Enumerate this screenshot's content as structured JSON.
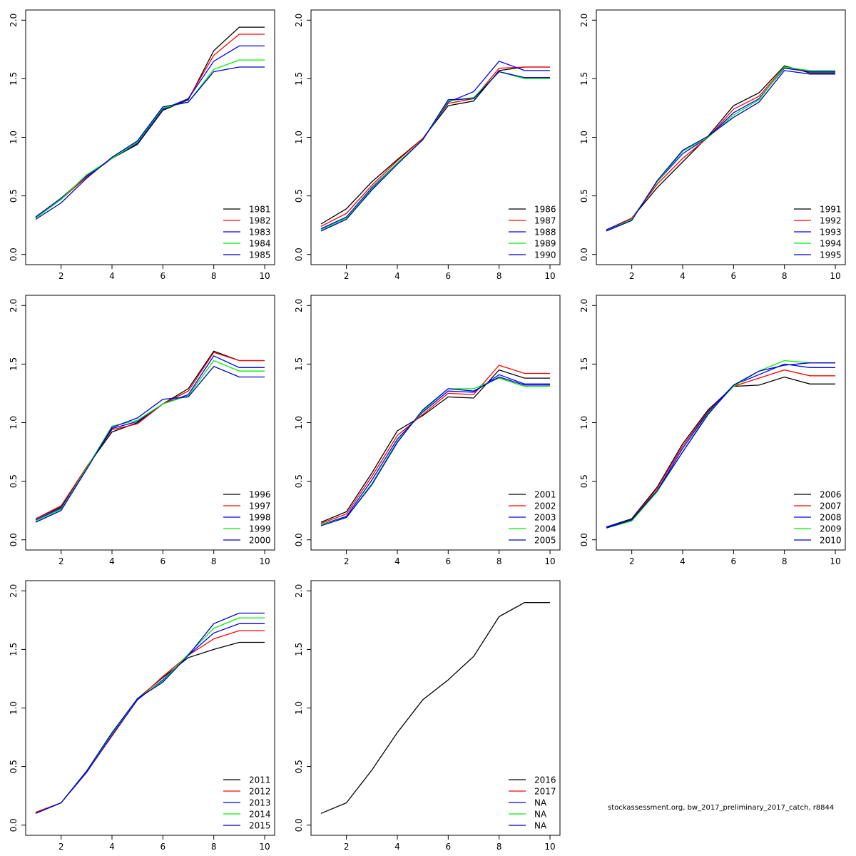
{
  "footer": "stockassessment.org, bw_2017_preliminary_2017_catch, r8844",
  "chart_data": [
    {
      "type": "line",
      "x": [
        1,
        2,
        3,
        4,
        5,
        6,
        7,
        8,
        9,
        10
      ],
      "ylim": [
        0,
        2
      ],
      "xlim": [
        1,
        10
      ],
      "xticks": [
        "2",
        "4",
        "6",
        "8",
        "10"
      ],
      "yticks": [
        "0.0",
        "0.5",
        "1.0",
        "1.5",
        "2.0"
      ],
      "series": [
        {
          "name": "1981",
          "color": "#000000",
          "values": [
            0.32,
            0.48,
            0.67,
            0.82,
            0.94,
            1.23,
            1.32,
            1.74,
            1.94,
            1.94
          ]
        },
        {
          "name": "1982",
          "color": "#ff0000",
          "values": [
            0.31,
            0.47,
            0.66,
            0.82,
            0.95,
            1.24,
            1.33,
            1.7,
            1.88,
            1.88
          ]
        },
        {
          "name": "1983",
          "color": "#0000ff",
          "values": [
            0.32,
            0.48,
            0.67,
            0.82,
            0.95,
            1.24,
            1.33,
            1.65,
            1.78,
            1.78
          ]
        },
        {
          "name": "1984",
          "color": "#00ee00",
          "values": [
            0.31,
            0.47,
            0.68,
            0.82,
            0.96,
            1.25,
            1.3,
            1.58,
            1.66,
            1.66
          ]
        },
        {
          "name": "1985",
          "color": "#0000cc",
          "values": [
            0.3,
            0.44,
            0.65,
            0.83,
            0.97,
            1.26,
            1.3,
            1.56,
            1.6,
            1.6
          ]
        }
      ]
    },
    {
      "type": "line",
      "x": [
        1,
        2,
        3,
        4,
        5,
        6,
        7,
        8,
        9,
        10
      ],
      "ylim": [
        0,
        2
      ],
      "xlim": [
        1,
        10
      ],
      "xticks": [
        "2",
        "4",
        "6",
        "8",
        "10"
      ],
      "yticks": [
        "0.0",
        "0.5",
        "1.0",
        "1.5",
        "2.0"
      ],
      "series": [
        {
          "name": "1986",
          "color": "#000000",
          "values": [
            0.26,
            0.39,
            0.62,
            0.81,
            0.99,
            1.27,
            1.31,
            1.57,
            1.6,
            1.6
          ]
        },
        {
          "name": "1987",
          "color": "#ff0000",
          "values": [
            0.24,
            0.35,
            0.59,
            0.8,
            0.99,
            1.29,
            1.33,
            1.59,
            1.6,
            1.6
          ]
        },
        {
          "name": "1988",
          "color": "#0000ff",
          "values": [
            0.22,
            0.32,
            0.57,
            0.78,
            0.98,
            1.3,
            1.39,
            1.65,
            1.57,
            1.57
          ]
        },
        {
          "name": "1989",
          "color": "#00ee00",
          "values": [
            0.21,
            0.31,
            0.56,
            0.78,
            0.98,
            1.31,
            1.34,
            1.56,
            1.5,
            1.5
          ]
        },
        {
          "name": "1990",
          "color": "#0000cc",
          "values": [
            0.2,
            0.3,
            0.55,
            0.77,
            0.98,
            1.32,
            1.33,
            1.56,
            1.51,
            1.51
          ]
        }
      ]
    },
    {
      "type": "line",
      "x": [
        1,
        2,
        3,
        4,
        5,
        6,
        7,
        8,
        9,
        10
      ],
      "ylim": [
        0,
        2
      ],
      "xlim": [
        1,
        10
      ],
      "xticks": [
        "2",
        "4",
        "6",
        "8",
        "10"
      ],
      "yticks": [
        "0.0",
        "0.5",
        "1.0",
        "1.5",
        "2.0"
      ],
      "series": [
        {
          "name": "1991",
          "color": "#000000",
          "values": [
            0.21,
            0.31,
            0.57,
            0.79,
            1.01,
            1.27,
            1.38,
            1.61,
            1.55,
            1.55
          ]
        },
        {
          "name": "1992",
          "color": "#ff0000",
          "values": [
            0.21,
            0.31,
            0.6,
            0.82,
            1.0,
            1.24,
            1.35,
            1.6,
            1.56,
            1.56
          ]
        },
        {
          "name": "1993",
          "color": "#0000ff",
          "values": [
            0.21,
            0.3,
            0.62,
            0.86,
            1.0,
            1.21,
            1.33,
            1.59,
            1.56,
            1.56
          ]
        },
        {
          "name": "1994",
          "color": "#00ee00",
          "values": [
            0.2,
            0.3,
            0.62,
            0.88,
            1.0,
            1.19,
            1.32,
            1.6,
            1.57,
            1.57
          ]
        },
        {
          "name": "1995",
          "color": "#0000cc",
          "values": [
            0.2,
            0.29,
            0.63,
            0.89,
            1.01,
            1.17,
            1.3,
            1.57,
            1.54,
            1.54
          ]
        }
      ]
    },
    {
      "type": "line",
      "x": [
        1,
        2,
        3,
        4,
        5,
        6,
        7,
        8,
        9,
        10
      ],
      "ylim": [
        0,
        2
      ],
      "xlim": [
        1,
        10
      ],
      "xticks": [
        "2",
        "4",
        "6",
        "8",
        "10"
      ],
      "yticks": [
        "0.0",
        "0.5",
        "1.0",
        "1.5",
        "2.0"
      ],
      "series": [
        {
          "name": "1996",
          "color": "#000000",
          "values": [
            0.18,
            0.28,
            0.62,
            0.92,
            1.0,
            1.16,
            1.29,
            1.61,
            1.53,
            1.53
          ]
        },
        {
          "name": "1997",
          "color": "#ff0000",
          "values": [
            0.18,
            0.29,
            0.62,
            0.94,
            0.99,
            1.16,
            1.27,
            1.6,
            1.53,
            1.53
          ]
        },
        {
          "name": "1998",
          "color": "#0000ff",
          "values": [
            0.17,
            0.27,
            0.61,
            0.95,
            1.01,
            1.16,
            1.24,
            1.57,
            1.47,
            1.47
          ]
        },
        {
          "name": "1999",
          "color": "#00ee00",
          "values": [
            0.16,
            0.26,
            0.61,
            0.97,
            1.02,
            1.16,
            1.23,
            1.53,
            1.44,
            1.44
          ]
        },
        {
          "name": "2000",
          "color": "#0000cc",
          "values": [
            0.15,
            0.25,
            0.6,
            0.96,
            1.04,
            1.2,
            1.22,
            1.48,
            1.39,
            1.39
          ]
        }
      ]
    },
    {
      "type": "line",
      "x": [
        1,
        2,
        3,
        4,
        5,
        6,
        7,
        8,
        9,
        10
      ],
      "ylim": [
        0,
        2
      ],
      "xlim": [
        1,
        10
      ],
      "xticks": [
        "2",
        "4",
        "6",
        "8",
        "10"
      ],
      "yticks": [
        "0.0",
        "0.5",
        "1.0",
        "1.5",
        "2.0"
      ],
      "series": [
        {
          "name": "2001",
          "color": "#000000",
          "values": [
            0.15,
            0.24,
            0.57,
            0.93,
            1.06,
            1.22,
            1.21,
            1.45,
            1.38,
            1.38
          ]
        },
        {
          "name": "2002",
          "color": "#ff0000",
          "values": [
            0.14,
            0.22,
            0.54,
            0.89,
            1.07,
            1.25,
            1.24,
            1.49,
            1.42,
            1.42
          ]
        },
        {
          "name": "2003",
          "color": "#0000ff",
          "values": [
            0.13,
            0.2,
            0.51,
            0.86,
            1.09,
            1.27,
            1.26,
            1.41,
            1.33,
            1.33
          ]
        },
        {
          "name": "2004",
          "color": "#00ee00",
          "values": [
            0.13,
            0.19,
            0.48,
            0.84,
            1.1,
            1.29,
            1.29,
            1.38,
            1.31,
            1.31
          ]
        },
        {
          "name": "2005",
          "color": "#0000cc",
          "values": [
            0.12,
            0.19,
            0.47,
            0.83,
            1.11,
            1.29,
            1.27,
            1.39,
            1.32,
            1.32
          ]
        }
      ]
    },
    {
      "type": "line",
      "x": [
        1,
        2,
        3,
        4,
        5,
        6,
        7,
        8,
        9,
        10
      ],
      "ylim": [
        0,
        2
      ],
      "xlim": [
        1,
        10
      ],
      "xticks": [
        "2",
        "4",
        "6",
        "8",
        "10"
      ],
      "yticks": [
        "0.0",
        "0.5",
        "1.0",
        "1.5",
        "2.0"
      ],
      "series": [
        {
          "name": "2006",
          "color": "#000000",
          "values": [
            0.11,
            0.18,
            0.45,
            0.82,
            1.11,
            1.31,
            1.32,
            1.39,
            1.33,
            1.33
          ]
        },
        {
          "name": "2007",
          "color": "#ff0000",
          "values": [
            0.11,
            0.17,
            0.44,
            0.8,
            1.1,
            1.31,
            1.38,
            1.45,
            1.4,
            1.4
          ]
        },
        {
          "name": "2008",
          "color": "#0000ff",
          "values": [
            0.11,
            0.17,
            0.42,
            0.78,
            1.09,
            1.32,
            1.41,
            1.5,
            1.47,
            1.47
          ]
        },
        {
          "name": "2009",
          "color": "#00ee00",
          "values": [
            0.1,
            0.16,
            0.41,
            0.75,
            1.08,
            1.31,
            1.44,
            1.53,
            1.51,
            1.51
          ]
        },
        {
          "name": "2010",
          "color": "#0000cc",
          "values": [
            0.1,
            0.17,
            0.42,
            0.75,
            1.07,
            1.32,
            1.44,
            1.49,
            1.51,
            1.51
          ]
        }
      ]
    },
    {
      "type": "line",
      "x": [
        1,
        2,
        3,
        4,
        5,
        6,
        7,
        8,
        9,
        10
      ],
      "ylim": [
        0,
        2
      ],
      "xlim": [
        1,
        10
      ],
      "xticks": [
        "2",
        "4",
        "6",
        "8",
        "10"
      ],
      "yticks": [
        "0.0",
        "0.5",
        "1.0",
        "1.5",
        "2.0"
      ],
      "series": [
        {
          "name": "2011",
          "color": "#000000",
          "values": [
            0.11,
            0.19,
            0.46,
            0.78,
            1.08,
            1.26,
            1.43,
            1.5,
            1.56,
            1.56
          ]
        },
        {
          "name": "2012",
          "color": "#ff0000",
          "values": [
            0.11,
            0.19,
            0.45,
            0.76,
            1.07,
            1.27,
            1.45,
            1.59,
            1.66,
            1.66
          ]
        },
        {
          "name": "2013",
          "color": "#0000ff",
          "values": [
            0.1,
            0.19,
            0.45,
            0.77,
            1.07,
            1.24,
            1.45,
            1.64,
            1.72,
            1.72
          ]
        },
        {
          "name": "2014",
          "color": "#00ee00",
          "values": [
            0.1,
            0.19,
            0.46,
            0.78,
            1.08,
            1.23,
            1.46,
            1.68,
            1.77,
            1.77
          ]
        },
        {
          "name": "2015",
          "color": "#0000cc",
          "values": [
            0.1,
            0.19,
            0.46,
            0.79,
            1.08,
            1.22,
            1.45,
            1.72,
            1.81,
            1.81
          ]
        }
      ]
    },
    {
      "type": "line",
      "x": [
        1,
        2,
        3,
        4,
        5,
        6,
        7,
        8,
        9,
        10
      ],
      "ylim": [
        0,
        2
      ],
      "xlim": [
        1,
        10
      ],
      "xticks": [
        "2",
        "4",
        "6",
        "8",
        "10"
      ],
      "yticks": [
        "0.0",
        "0.5",
        "1.0",
        "1.5",
        "2.0"
      ],
      "series": [
        {
          "name": "2016",
          "color": "#000000",
          "values": [
            0.1,
            0.19,
            0.47,
            0.79,
            1.07,
            1.24,
            1.44,
            1.78,
            1.9,
            1.9
          ]
        },
        {
          "name": "2017",
          "color": "#ff0000",
          "values": null
        },
        {
          "name": "NA",
          "color": "#0000ff",
          "values": null
        },
        {
          "name": "NA",
          "color": "#00ee00",
          "values": null
        },
        {
          "name": "NA",
          "color": "#0000cc",
          "values": null
        }
      ]
    }
  ]
}
